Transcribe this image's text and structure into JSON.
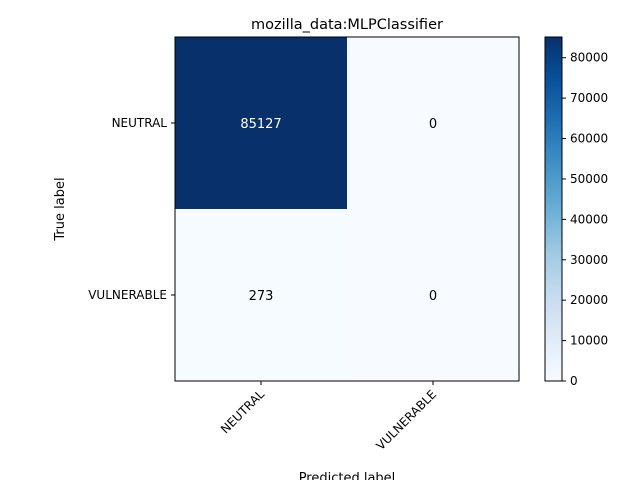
{
  "chart_data": {
    "type": "heatmap",
    "title": "mozilla_data:MLPClassifier",
    "xlabel": "Predicted label",
    "ylabel": "True label",
    "x_categories": [
      "NEUTRAL",
      "VULNERABLE"
    ],
    "y_categories": [
      "NEUTRAL",
      "VULNERABLE"
    ],
    "matrix": [
      [
        85127,
        0
      ],
      [
        273,
        0
      ]
    ],
    "colormap": "Blues",
    "colorbar": {
      "min": 0,
      "max": 85127,
      "ticks": [
        0,
        10000,
        20000,
        30000,
        40000,
        50000,
        60000,
        70000,
        80000
      ]
    },
    "cell_text_colors": {
      "dark": "#ffffff",
      "light": "#000000"
    },
    "grid": false
  }
}
